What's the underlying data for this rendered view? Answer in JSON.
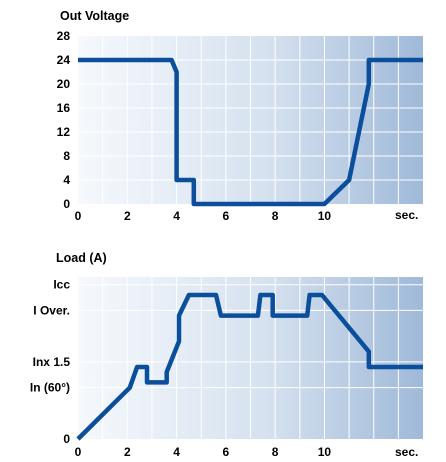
{
  "chart_data": [
    {
      "type": "line",
      "title": "Out Voltage",
      "x_ticks": [
        "0",
        "2",
        "4",
        "6",
        "8",
        "10"
      ],
      "x_unit": "sec.",
      "y_ticks": [
        "0",
        "4",
        "8",
        "12",
        "16",
        "20",
        "24",
        "28"
      ],
      "ylim": [
        0,
        28
      ],
      "xlim": [
        0,
        14
      ],
      "grid": true,
      "series": [
        {
          "color": "#0a4e9c",
          "x": [
            0,
            3.8,
            4.0,
            4.0,
            4.7,
            4.7,
            10.0,
            11.0,
            11.8,
            11.8,
            14
          ],
          "y": [
            24,
            24,
            22,
            4,
            4,
            0,
            0,
            4,
            20,
            24,
            24
          ]
        }
      ]
    },
    {
      "type": "line",
      "title": "Load (A)",
      "x_ticks": [
        "0",
        "2",
        "4",
        "6",
        "8",
        "10"
      ],
      "x_unit": "sec.",
      "y_ticks": [
        {
          "label": "Icc",
          "value": 6
        },
        {
          "label": "I Over.",
          "value": 5
        },
        {
          "label": "Inx 1.5",
          "value": 3
        },
        {
          "label": "In (60°)",
          "value": 2
        },
        {
          "label": "0",
          "value": 0
        }
      ],
      "ylim": [
        0,
        6.3
      ],
      "xlim": [
        0,
        14
      ],
      "grid": true,
      "series": [
        {
          "color": "#0a4e9c",
          "x": [
            0,
            2.1,
            2.4,
            2.8,
            2.8,
            3.6,
            3.6,
            4.1,
            4.1,
            4.5,
            5.6,
            5.8,
            5.8,
            7.3,
            7.4,
            7.9,
            7.9,
            9.3,
            9.4,
            9.9,
            11.8,
            11.8,
            14
          ],
          "y": [
            0,
            2,
            2.8,
            2.8,
            2.2,
            2.2,
            2.6,
            3.8,
            4.8,
            5.6,
            5.6,
            4.8,
            4.8,
            4.8,
            5.6,
            5.6,
            4.8,
            4.8,
            5.6,
            5.6,
            3.4,
            2.8,
            2.8
          ]
        }
      ]
    }
  ],
  "colors": {
    "line": "#0a4e9c",
    "plot_gradient_left": "#f6f9fd",
    "plot_gradient_right": "#9fb9d8",
    "grid": "#ffffff"
  }
}
